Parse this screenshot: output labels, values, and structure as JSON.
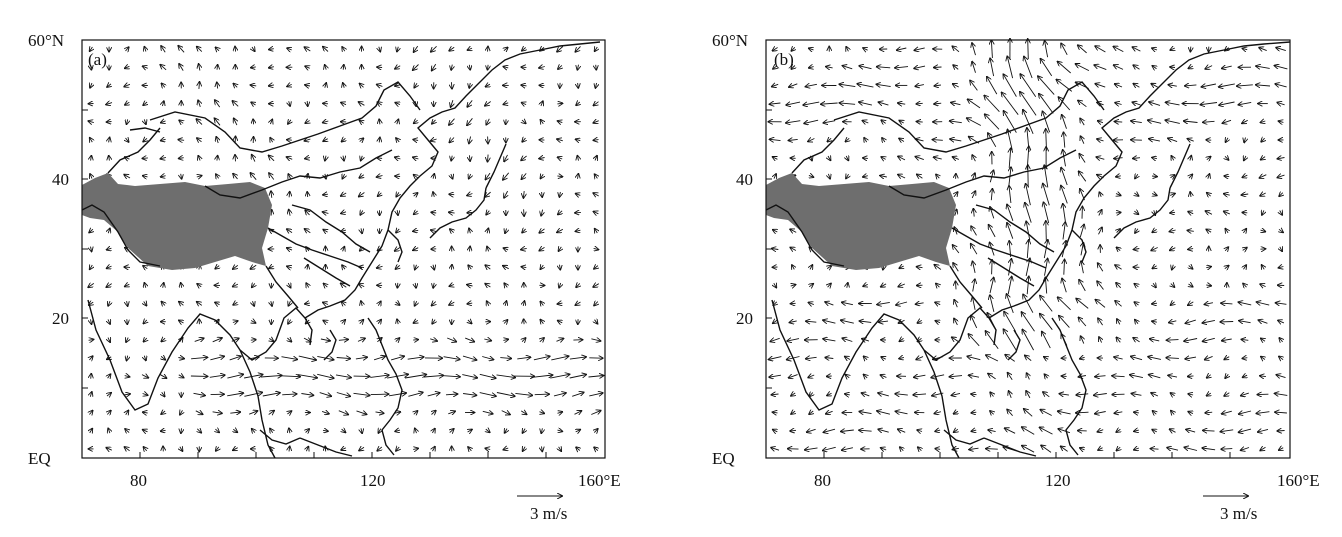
{
  "panels": [
    {
      "id": "a",
      "panel_label": "(a)",
      "lat_top_label": "60°N",
      "lat_labels": [
        "40",
        "20",
        "EQ"
      ],
      "lon_labels": [
        "80",
        "120",
        "160°E"
      ],
      "reference_vector_label": "3 m/s"
    },
    {
      "id": "b",
      "panel_label": "(b)",
      "lat_top_label": "60°N",
      "lat_labels": [
        "40",
        "20",
        "EQ"
      ],
      "lon_labels": [
        "80",
        "120",
        "160°E"
      ],
      "reference_vector_label": "3 m/s"
    }
  ],
  "map_extent": {
    "lon_range": [
      70,
      160
    ],
    "lat_range": [
      0,
      60
    ]
  },
  "colors": {
    "plateau_fill": "#6e6e6e",
    "vector": "#111111",
    "coastline": "#111111"
  }
}
